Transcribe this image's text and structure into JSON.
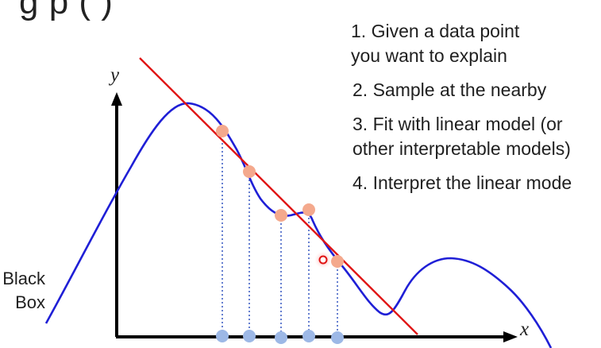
{
  "header": {
    "title_fragment": "g             p             (        )"
  },
  "steps": [
    {
      "line1": "1. Given a data point",
      "line2": "you want to explain"
    },
    {
      "line1": "2. Sample at the nearby"
    },
    {
      "line1": "3. Fit with linear model (or",
      "line2": "other interpretable models)"
    },
    {
      "line1": "4. Interpret the linear mode"
    }
  ],
  "axes": {
    "x_label": "x",
    "y_label": "y"
  },
  "black_box_label": {
    "line1": "Black",
    "line2": "Box"
  },
  "colors": {
    "curve": "#1f1fd6",
    "fit_line": "#e01414",
    "sample_point": "#f4a98d",
    "axis_point": "#9db8e6",
    "dotted_line": "#3f5fc4",
    "axis": "#000000"
  },
  "sample_count": 5
}
